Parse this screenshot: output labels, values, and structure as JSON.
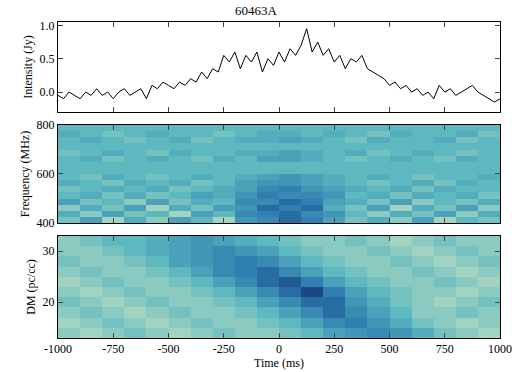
{
  "chart_data": [
    {
      "type": "line",
      "title": "60463A",
      "y_label": "Intensity (Jy)",
      "color": "#000000",
      "tick_labels": "y",
      "x": [
        -1000,
        -975,
        -950,
        -925,
        -900,
        -875,
        -850,
        -825,
        -800,
        -775,
        -750,
        -725,
        -700,
        -675,
        -650,
        -625,
        -600,
        -575,
        -550,
        -525,
        -500,
        -475,
        -450,
        -425,
        -400,
        -375,
        -350,
        -325,
        -300,
        -275,
        -250,
        -225,
        -200,
        -175,
        -150,
        -125,
        -100,
        -75,
        -50,
        -25,
        0,
        25,
        50,
        75,
        100,
        125,
        150,
        175,
        200,
        225,
        250,
        275,
        300,
        325,
        350,
        375,
        400,
        425,
        450,
        475,
        500,
        525,
        550,
        575,
        600,
        625,
        650,
        675,
        700,
        725,
        750,
        775,
        800,
        825,
        850,
        875,
        900,
        925,
        950,
        975,
        1000
      ],
      "values": [
        -0.05,
        -0.1,
        0.0,
        -0.05,
        -0.1,
        0.0,
        -0.05,
        0.05,
        -0.05,
        0.0,
        -0.1,
        0.0,
        0.05,
        -0.05,
        0.0,
        0.05,
        -0.1,
        0.1,
        0.05,
        0.15,
        0.1,
        0.05,
        0.15,
        0.1,
        0.2,
        0.15,
        0.3,
        0.2,
        0.35,
        0.3,
        0.55,
        0.45,
        0.6,
        0.35,
        0.55,
        0.45,
        0.6,
        0.3,
        0.5,
        0.4,
        0.6,
        0.45,
        0.65,
        0.55,
        0.7,
        0.95,
        0.6,
        0.75,
        0.55,
        0.65,
        0.45,
        0.55,
        0.35,
        0.5,
        0.45,
        0.55,
        0.35,
        0.3,
        0.25,
        0.2,
        0.1,
        0.15,
        0.05,
        0.1,
        0.0,
        0.05,
        -0.05,
        0.0,
        -0.1,
        0.1,
        0.0,
        0.05,
        -0.05,
        0.0,
        0.05,
        0.1,
        0.0,
        -0.05,
        -0.1,
        -0.15,
        -0.1
      ],
      "xlim": [
        -1000,
        1000
      ],
      "xticks": [
        -1000,
        -750,
        -500,
        -250,
        0,
        250,
        500,
        750,
        1000
      ],
      "ylim": [
        -0.3,
        1.05
      ],
      "yticks": [
        {
          "value": 0,
          "label": "0.0"
        },
        {
          "value": 0.5,
          "label": "0.5"
        },
        {
          "value": 1,
          "label": "1.0"
        }
      ]
    },
    {
      "type": "heatmap",
      "y_label": "Frequency (MHz)",
      "tick_labels": "y",
      "x": [
        -950,
        -850,
        -750,
        -650,
        -550,
        -450,
        -350,
        -250,
        -150,
        -50,
        50,
        150,
        250,
        350,
        450,
        550,
        650,
        750,
        850,
        950
      ],
      "y": [
        412.5,
        437.5,
        462.5,
        487.5,
        512.5,
        537.5,
        562.5,
        587.5,
        612.5,
        637.5,
        662.5,
        687.5,
        712.5,
        737.5,
        762.5,
        787.5
      ],
      "z": [
        [
          0.45,
          0.6,
          0.35,
          0.55,
          0.4,
          0.6,
          0.5,
          0.35,
          0.65,
          0.7,
          0.8,
          0.75,
          0.6,
          0.45,
          0.55,
          0.4,
          0.6,
          0.35,
          0.5,
          0.45
        ],
        [
          0.55,
          0.4,
          0.6,
          0.45,
          0.5,
          0.35,
          0.6,
          0.5,
          0.7,
          0.75,
          0.8,
          0.7,
          0.65,
          0.5,
          0.4,
          0.55,
          0.45,
          0.6,
          0.4,
          0.55
        ],
        [
          0.4,
          0.55,
          0.45,
          0.6,
          0.35,
          0.55,
          0.45,
          0.6,
          0.65,
          0.8,
          0.75,
          0.8,
          0.55,
          0.45,
          0.6,
          0.35,
          0.55,
          0.45,
          0.6,
          0.4
        ],
        [
          0.6,
          0.45,
          0.5,
          0.4,
          0.6,
          0.45,
          0.55,
          0.5,
          0.7,
          0.7,
          0.8,
          0.75,
          0.6,
          0.55,
          0.45,
          0.6,
          0.4,
          0.5,
          0.45,
          0.55
        ],
        [
          0.5,
          0.55,
          0.45,
          0.55,
          0.45,
          0.5,
          0.6,
          0.55,
          0.65,
          0.75,
          0.7,
          0.7,
          0.65,
          0.5,
          0.55,
          0.45,
          0.55,
          0.5,
          0.55,
          0.45
        ],
        [
          0.45,
          0.5,
          0.55,
          0.5,
          0.55,
          0.45,
          0.5,
          0.55,
          0.6,
          0.7,
          0.75,
          0.65,
          0.6,
          0.55,
          0.5,
          0.55,
          0.45,
          0.55,
          0.5,
          0.5
        ],
        [
          0.55,
          0.5,
          0.45,
          0.55,
          0.5,
          0.55,
          0.45,
          0.5,
          0.6,
          0.65,
          0.65,
          0.6,
          0.55,
          0.5,
          0.45,
          0.5,
          0.55,
          0.45,
          0.55,
          0.5
        ],
        [
          0.5,
          0.45,
          0.55,
          0.5,
          0.45,
          0.5,
          0.55,
          0.5,
          0.55,
          0.6,
          0.65,
          0.6,
          0.55,
          0.5,
          0.55,
          0.5,
          0.45,
          0.5,
          0.5,
          0.55
        ],
        [
          0.5,
          0.5,
          0.5,
          0.5,
          0.5,
          0.5,
          0.5,
          0.5,
          0.5,
          0.5,
          0.5,
          0.5,
          0.5,
          0.5,
          0.5,
          0.5,
          0.5,
          0.5,
          0.5,
          0.5
        ],
        [
          0.5,
          0.5,
          0.5,
          0.5,
          0.5,
          0.5,
          0.5,
          0.5,
          0.5,
          0.5,
          0.5,
          0.5,
          0.5,
          0.5,
          0.5,
          0.5,
          0.5,
          0.5,
          0.5,
          0.5
        ],
        [
          0.5,
          0.55,
          0.45,
          0.5,
          0.55,
          0.5,
          0.45,
          0.55,
          0.5,
          0.6,
          0.6,
          0.55,
          0.5,
          0.45,
          0.5,
          0.55,
          0.5,
          0.45,
          0.55,
          0.5
        ],
        [
          0.45,
          0.5,
          0.55,
          0.5,
          0.45,
          0.55,
          0.5,
          0.5,
          0.55,
          0.55,
          0.6,
          0.55,
          0.5,
          0.55,
          0.45,
          0.5,
          0.55,
          0.5,
          0.45,
          0.5
        ],
        [
          0.5,
          0.5,
          0.5,
          0.5,
          0.5,
          0.5,
          0.5,
          0.5,
          0.5,
          0.5,
          0.5,
          0.5,
          0.5,
          0.5,
          0.5,
          0.5,
          0.5,
          0.5,
          0.5,
          0.5
        ],
        [
          0.5,
          0.55,
          0.5,
          0.45,
          0.5,
          0.55,
          0.45,
          0.5,
          0.55,
          0.55,
          0.6,
          0.55,
          0.5,
          0.45,
          0.55,
          0.5,
          0.5,
          0.55,
          0.45,
          0.5
        ],
        [
          0.55,
          0.5,
          0.45,
          0.5,
          0.55,
          0.5,
          0.5,
          0.45,
          0.5,
          0.55,
          0.55,
          0.5,
          0.55,
          0.5,
          0.45,
          0.55,
          0.5,
          0.5,
          0.55,
          0.45
        ],
        [
          0.5,
          0.5,
          0.5,
          0.5,
          0.5,
          0.5,
          0.5,
          0.5,
          0.5,
          0.5,
          0.5,
          0.5,
          0.5,
          0.5,
          0.5,
          0.5,
          0.5,
          0.5,
          0.5,
          0.5
        ]
      ],
      "zlim": [
        0,
        1
      ],
      "xlim": [
        -1000,
        1000
      ],
      "xticks": [
        -1000,
        -750,
        -500,
        -250,
        0,
        250,
        500,
        750,
        1000
      ],
      "ylim": [
        400,
        800
      ],
      "yticks": [
        400,
        600,
        800
      ]
    },
    {
      "type": "heatmap",
      "x_label": "Time (ms)",
      "y_label": "DM (pc/cc)",
      "x": [
        -950,
        -850,
        -750,
        -650,
        -550,
        -450,
        -350,
        -250,
        -150,
        -50,
        50,
        150,
        250,
        350,
        450,
        550,
        650,
        750,
        850,
        950
      ],
      "y": [
        14,
        16,
        18,
        20,
        22,
        24,
        26,
        28,
        30,
        32
      ],
      "z": [
        [
          0.4,
          0.35,
          0.4,
          0.45,
          0.4,
          0.35,
          0.4,
          0.45,
          0.4,
          0.4,
          0.45,
          0.5,
          0.6,
          0.65,
          0.7,
          0.65,
          0.55,
          0.45,
          0.4,
          0.35
        ],
        [
          0.35,
          0.4,
          0.45,
          0.4,
          0.35,
          0.4,
          0.45,
          0.4,
          0.4,
          0.45,
          0.5,
          0.6,
          0.7,
          0.75,
          0.65,
          0.55,
          0.45,
          0.4,
          0.35,
          0.4
        ],
        [
          0.4,
          0.45,
          0.4,
          0.35,
          0.4,
          0.45,
          0.4,
          0.4,
          0.45,
          0.5,
          0.6,
          0.7,
          0.8,
          0.7,
          0.6,
          0.5,
          0.4,
          0.4,
          0.45,
          0.4
        ],
        [
          0.45,
          0.4,
          0.35,
          0.4,
          0.45,
          0.4,
          0.4,
          0.45,
          0.5,
          0.6,
          0.7,
          0.8,
          0.8,
          0.65,
          0.55,
          0.45,
          0.4,
          0.35,
          0.4,
          0.45
        ],
        [
          0.4,
          0.35,
          0.4,
          0.45,
          0.4,
          0.4,
          0.45,
          0.5,
          0.6,
          0.7,
          0.8,
          0.9,
          0.75,
          0.6,
          0.5,
          0.45,
          0.4,
          0.4,
          0.35,
          0.4
        ],
        [
          0.35,
          0.4,
          0.45,
          0.4,
          0.4,
          0.45,
          0.5,
          0.6,
          0.7,
          0.8,
          0.85,
          0.75,
          0.6,
          0.5,
          0.45,
          0.4,
          0.4,
          0.45,
          0.4,
          0.35
        ],
        [
          0.4,
          0.45,
          0.4,
          0.4,
          0.45,
          0.5,
          0.6,
          0.7,
          0.75,
          0.8,
          0.7,
          0.6,
          0.5,
          0.45,
          0.4,
          0.4,
          0.45,
          0.4,
          0.35,
          0.4
        ],
        [
          0.45,
          0.4,
          0.4,
          0.45,
          0.5,
          0.6,
          0.65,
          0.7,
          0.75,
          0.7,
          0.6,
          0.5,
          0.45,
          0.4,
          0.4,
          0.45,
          0.4,
          0.35,
          0.4,
          0.45
        ],
        [
          0.4,
          0.4,
          0.45,
          0.5,
          0.55,
          0.6,
          0.65,
          0.7,
          0.65,
          0.6,
          0.5,
          0.45,
          0.4,
          0.4,
          0.45,
          0.4,
          0.35,
          0.4,
          0.45,
          0.4
        ],
        [
          0.4,
          0.45,
          0.5,
          0.5,
          0.55,
          0.6,
          0.65,
          0.6,
          0.55,
          0.5,
          0.45,
          0.4,
          0.4,
          0.45,
          0.4,
          0.35,
          0.4,
          0.45,
          0.4,
          0.4
        ]
      ],
      "zlim": [
        0,
        1
      ],
      "xlim": [
        -1000,
        1000
      ],
      "xticks": [
        -1000,
        -750,
        -500,
        -250,
        0,
        250,
        500,
        750,
        1000
      ],
      "ylim": [
        13,
        33
      ],
      "yticks": [
        20,
        30
      ]
    }
  ]
}
